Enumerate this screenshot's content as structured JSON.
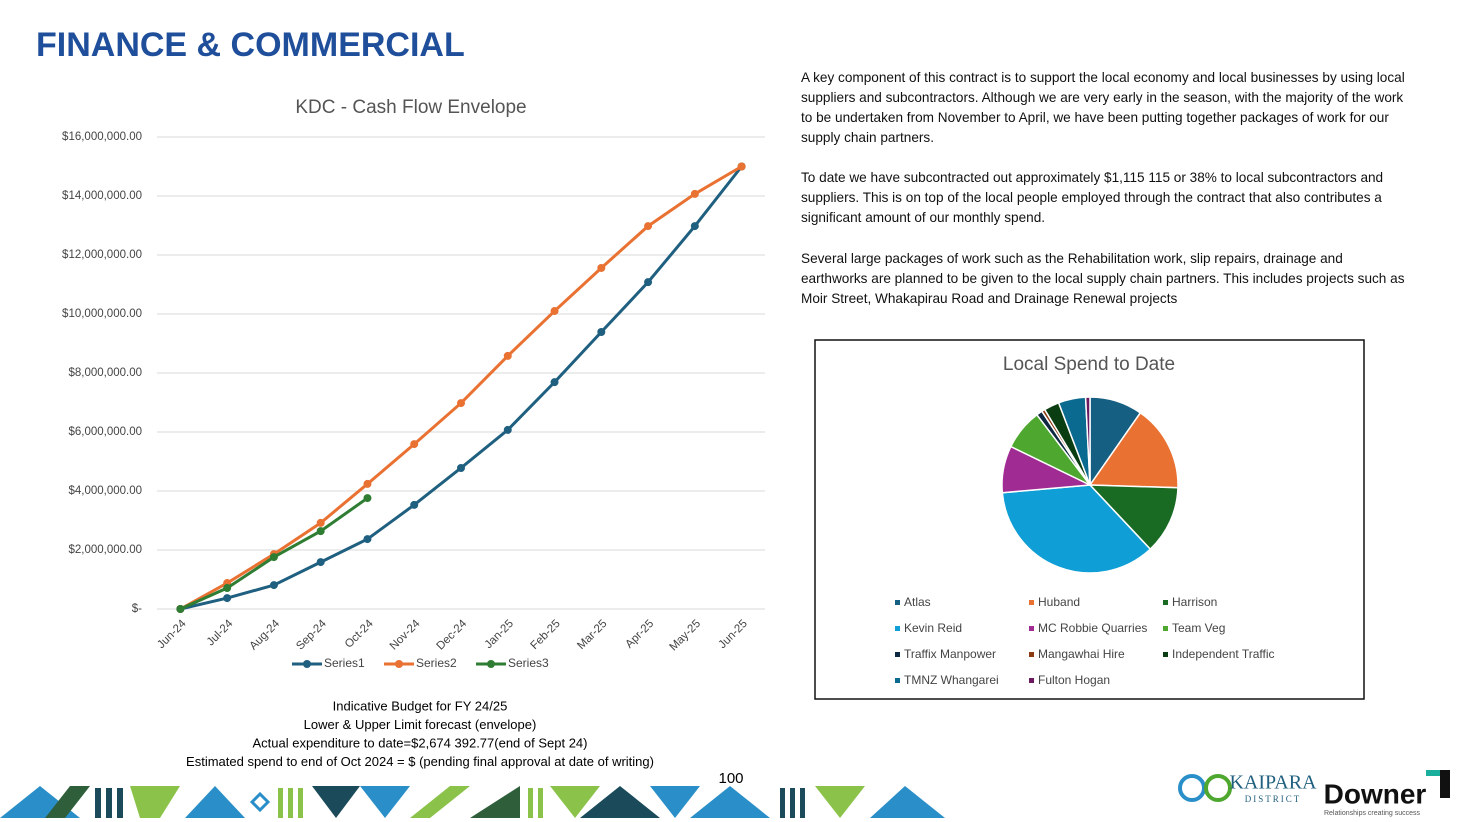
{
  "header": {
    "title": "FINANCE & COMMERCIAL"
  },
  "paragraphs": [
    "A key component of this contract is to support the local economy and local businesses by using local suppliers and subcontractors. Although we are very early in the season, with the majority of the work to be undertaken from November to April, we have been putting together packages of work for our supply chain partners.",
    "To date we have subcontracted out approximately $1,115 115 or 38% to local subcontractors and suppliers. This is on top of the local people employed through the contract that also contributes a significant amount of our monthly spend.",
    "Several large packages of work such as the Rehabilitation work, slip repairs, drainage and earthworks are planned to be given to the local supply chain partners. This includes projects such as Moir Street, Whakapirau Road and Drainage Renewal projects"
  ],
  "notes": [
    "Indicative Budget for FY 24/25",
    "Lower & Upper Limit forecast (envelope)",
    "Actual expenditure to date=$2,674 392.77(end of Sept 24)",
    "Estimated spend to end of Oct 2024 = $   (pending final approval at date of writing)"
  ],
  "page_number": "100",
  "logos": {
    "kaipara": "KAIPARA",
    "district": "DISTRICT",
    "downer": "Downer",
    "downer_tagline": "Relationships creating success"
  },
  "chart_data": [
    {
      "type": "line",
      "title": "KDC - Cash Flow Envelope",
      "categories": [
        "Jun-24",
        "Jul-24",
        "Aug-24",
        "Sep-24",
        "Oct-24",
        "Nov-24",
        "Dec-24",
        "Jan-25",
        "Feb-25",
        "Mar-25",
        "Apr-25",
        "May-25",
        "Jun-25"
      ],
      "series": [
        {
          "name": "Series1",
          "color": "#1f5f7f",
          "values": [
            0,
            370000,
            810000,
            1590000,
            2370000,
            3530000,
            4780000,
            6070000,
            7690000,
            9390000,
            11080000,
            12980000,
            15000000
          ]
        },
        {
          "name": "Series2",
          "color": "#e97132",
          "values": [
            0,
            880000,
            1860000,
            2920000,
            4240000,
            5590000,
            6980000,
            8580000,
            10100000,
            11560000,
            12980000,
            14070000,
            15000000
          ]
        },
        {
          "name": "Series3",
          "color": "#2e7d32",
          "values": [
            0,
            710000,
            1760000,
            2640000,
            3760000,
            null,
            null,
            null,
            null,
            null,
            null,
            null,
            null
          ]
        }
      ],
      "ylim": [
        0,
        16000000
      ],
      "yticks": [
        {
          "value": 0,
          "label": "$-"
        },
        {
          "value": 2000000,
          "label": "$2,000,000.00"
        },
        {
          "value": 4000000,
          "label": "$4,000,000.00"
        },
        {
          "value": 6000000,
          "label": "$6,000,000.00"
        },
        {
          "value": 8000000,
          "label": "$8,000,000.00"
        },
        {
          "value": 10000000,
          "label": "$10,000,000.00"
        },
        {
          "value": 12000000,
          "label": "$12,000,000.00"
        },
        {
          "value": 14000000,
          "label": "$14,000,000.00"
        },
        {
          "value": 16000000,
          "label": "$16,000,000.00"
        }
      ],
      "grid": true,
      "legend": "bottom"
    },
    {
      "type": "pie",
      "title": "Local Spend to Date",
      "categories": [
        "Atlas",
        "Huband",
        "Harrison",
        "Kevin Reid",
        "MC Robbie Quarries",
        "Team Veg",
        "Traffix Manpower",
        "Mangawhai Hire",
        "Independent Traffic",
        "TMNZ Whangarei",
        "Fulton Hogan"
      ],
      "values": [
        9.7,
        15.8,
        12.5,
        35.6,
        8.6,
        7.5,
        1.1,
        0.6,
        2.8,
        5.0,
        0.8
      ],
      "colors": [
        "#156082",
        "#e97132",
        "#196b24",
        "#0f9ed5",
        "#a02b93",
        "#4ea72e",
        "#0e2841",
        "#8b3a12",
        "#0b3d12",
        "#0b6a8f",
        "#6b1a60"
      ],
      "legend": "bottom"
    }
  ]
}
